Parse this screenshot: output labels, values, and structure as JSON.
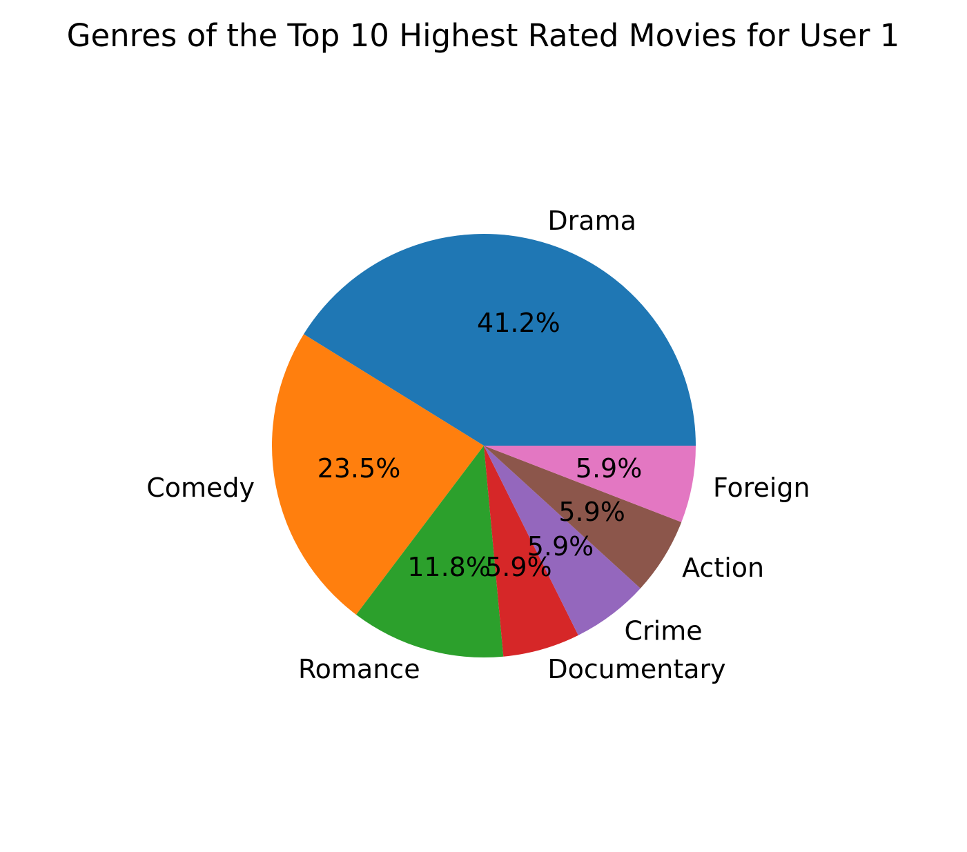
{
  "chart_data": {
    "type": "pie",
    "title": "Genres of the Top 10 Highest Rated Movies for User 1",
    "autopct_format": "%1.1f%%",
    "start_angle_deg": 0,
    "direction": "counterclockwise",
    "slices": [
      {
        "label": "Drama",
        "value": 7,
        "percent_label": "41.2%",
        "color": "#1f77b4"
      },
      {
        "label": "Comedy",
        "value": 4,
        "percent_label": "23.5%",
        "color": "#ff7f0e"
      },
      {
        "label": "Romance",
        "value": 2,
        "percent_label": "11.8%",
        "color": "#2ca02c"
      },
      {
        "label": "Documentary",
        "value": 1,
        "percent_label": "5.9%",
        "color": "#d62728"
      },
      {
        "label": "Crime",
        "value": 1,
        "percent_label": "5.9%",
        "color": "#9467bd"
      },
      {
        "label": "Action",
        "value": 1,
        "percent_label": "5.9%",
        "color": "#8c564b"
      },
      {
        "label": "Foreign",
        "value": 1,
        "percent_label": "5.9%",
        "color": "#e377c2"
      }
    ]
  }
}
